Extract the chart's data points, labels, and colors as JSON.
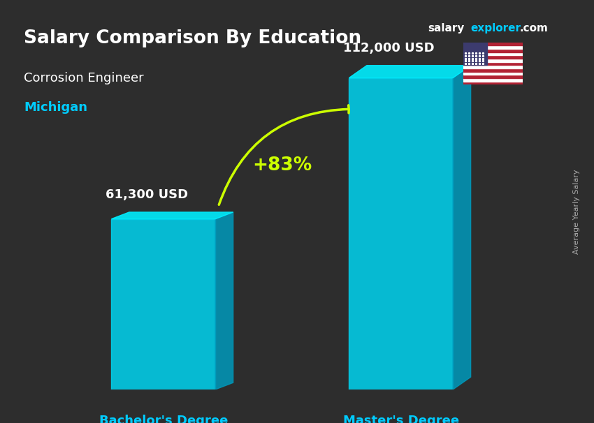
{
  "title": "Salary Comparison By Education",
  "subtitle": "Corrosion Engineer",
  "location": "Michigan",
  "ylabel": "Average Yearly Salary",
  "categories": [
    "Bachelor's Degree",
    "Master's Degree"
  ],
  "values": [
    61300,
    112000
  ],
  "value_labels": [
    "61,300 USD",
    "112,000 USD"
  ],
  "pct_change": "+83%",
  "bar_color_face": "#00d4f0",
  "bar_color_side": "#0099bb",
  "bar_color_top": "#00eeff",
  "bar_width": 0.35,
  "bg_color": "#1a1a2e",
  "title_color": "#ffffff",
  "subtitle_color": "#ffffff",
  "location_color": "#00ccff",
  "value_label_color": "#ffffff",
  "category_label_color": "#00ccff",
  "pct_color": "#ccff00",
  "arrow_color": "#ccff00",
  "brand_salary": "salary",
  "brand_explorer": "explorer",
  "brand_com": ".com",
  "brand_color_salary": "#ffffff",
  "brand_color_explorer": "#00ccff",
  "ylim_max": 140000,
  "figwidth": 8.5,
  "figheight": 6.06,
  "dpi": 100
}
